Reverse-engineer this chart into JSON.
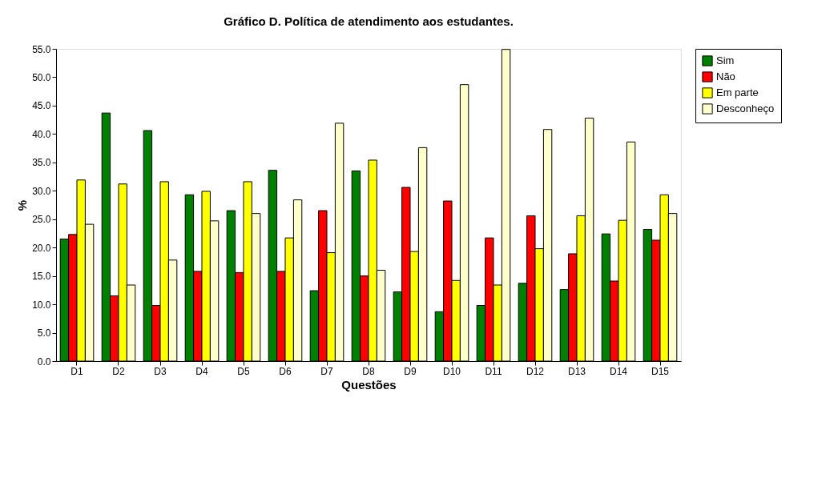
{
  "chart_data": {
    "type": "bar",
    "title": "Gráfico D. Política de atendimento aos estudantes.",
    "xlabel": "Questões",
    "ylabel": "%",
    "categories": [
      "D1",
      "D2",
      "D3",
      "D4",
      "D5",
      "D6",
      "D7",
      "D8",
      "D9",
      "D10",
      "D11",
      "D12",
      "D13",
      "D14",
      "D15"
    ],
    "series": [
      {
        "name": "Sim",
        "color": "#008000",
        "values": [
          21.5,
          43.7,
          40.6,
          29.3,
          26.5,
          33.6,
          12.4,
          33.5,
          12.2,
          8.7,
          9.8,
          13.7,
          12.6,
          22.4,
          23.2
        ]
      },
      {
        "name": "Não",
        "color": "#ff0000",
        "values": [
          22.3,
          11.5,
          9.8,
          15.8,
          15.6,
          15.8,
          26.5,
          15.0,
          30.6,
          28.2,
          21.7,
          25.6,
          18.9,
          14.1,
          21.3
        ]
      },
      {
        "name": "Em parte",
        "color": "#ffff00",
        "values": [
          31.9,
          31.2,
          31.6,
          29.9,
          31.6,
          21.7,
          19.1,
          35.4,
          19.3,
          14.2,
          13.4,
          19.8,
          25.6,
          24.8,
          29.3
        ]
      },
      {
        "name": "Desconheço",
        "color": "#ffffcc",
        "values": [
          24.1,
          13.4,
          17.8,
          24.7,
          26.0,
          28.4,
          41.9,
          16.0,
          37.6,
          48.7,
          54.9,
          40.8,
          42.8,
          38.6,
          26.0
        ]
      }
    ],
    "ylim": [
      0,
      55
    ],
    "yticks": [
      {
        "value": 0,
        "label": "0.0"
      },
      {
        "value": 5,
        "label": "5.0"
      },
      {
        "value": 10,
        "label": "10.0"
      },
      {
        "value": 15,
        "label": "15.0"
      },
      {
        "value": 20,
        "label": "20.0"
      },
      {
        "value": 25,
        "label": "25.0"
      },
      {
        "value": 30,
        "label": "30.0"
      },
      {
        "value": 35,
        "label": "35.0"
      },
      {
        "value": 40,
        "label": "40.0"
      },
      {
        "value": 45,
        "label": "45.0"
      },
      {
        "value": 50,
        "label": "50.0"
      },
      {
        "value": 55,
        "label": "55.0"
      }
    ],
    "grid": false,
    "legend": "right"
  }
}
